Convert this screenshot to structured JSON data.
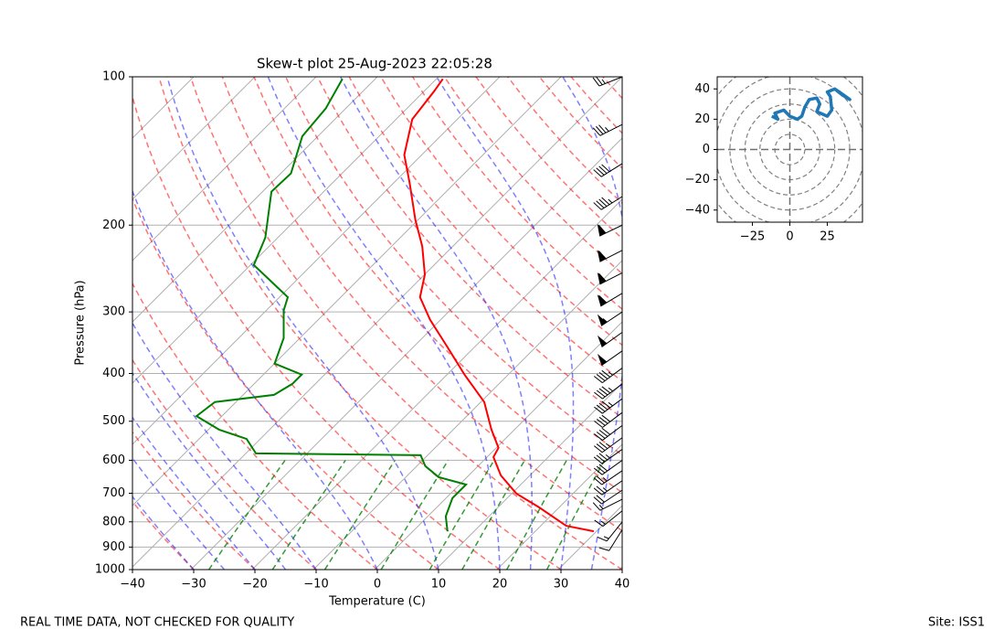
{
  "chart_data": [
    {
      "type": "skewt",
      "title": "Skew-t plot 25-Aug-2023 22:05:28",
      "x_label": "Temperature (C)",
      "y_label": "Pressure (hPa)",
      "xlim": [
        -40,
        40
      ],
      "ylim": [
        1000,
        100
      ],
      "log_y": true,
      "grid": true,
      "xticks": [
        {
          "value": -40,
          "label": "−40"
        },
        {
          "value": -30,
          "label": "−30"
        },
        {
          "value": -20,
          "label": "−20"
        },
        {
          "value": -10,
          "label": "−10"
        },
        0,
        10,
        20,
        30,
        40
      ],
      "yticks": [
        1000,
        900,
        800,
        700,
        600,
        500,
        400,
        300,
        200,
        100
      ],
      "series": [
        {
          "color": "#ff0000",
          "pressure": [
            836,
            815,
            748,
            701,
            644,
            591,
            566,
            520,
            457,
            402,
            354,
            311,
            280,
            252,
            221,
            195,
            164,
            144,
            122,
            107,
            101
          ],
          "values": [
            29.1,
            23.7,
            16.3,
            10.3,
            4.8,
            0.6,
            -0.1,
            -4.2,
            -9.9,
            -17.6,
            -24.8,
            -32.2,
            -37.5,
            -40.4,
            -45.4,
            -50.9,
            -57.9,
            -63.3,
            -67.8,
            -68.8,
            -69.4
          ]
        },
        {
          "color": "#008000",
          "pressure": [
            836,
            780,
            716,
            672,
            649,
            616,
            586,
            581,
            543,
            520,
            488,
            457,
            442,
            420,
            402,
            382,
            339,
            298,
            280,
            263,
            241,
            212,
            171,
            157,
            132,
            116,
            101
          ],
          "values": [
            5.2,
            2.5,
            0.6,
            0.6,
            -5.1,
            -9.1,
            -11.6,
            -38.8,
            -42.7,
            -48.7,
            -54.6,
            -53.9,
            -45.4,
            -44.2,
            -44.2,
            -50.4,
            -53.1,
            -57.6,
            -59.1,
            -63.6,
            -69.9,
            -72.5,
            -79.0,
            -78.8,
            -83.0,
            -83.7,
            -85.8
          ]
        }
      ],
      "barbs": {
        "pressure": [
          830,
          800,
          760,
          720,
          690,
          660,
          630,
          600,
          570,
          540,
          510,
          480,
          450,
          420,
          390,
          360,
          330,
          300,
          275,
          250,
          225,
          200,
          175,
          150,
          125,
          100
        ],
        "u": [
          5,
          8,
          10,
          12,
          18,
          20,
          22,
          25,
          28,
          30,
          32,
          33,
          35,
          36,
          38,
          40,
          42,
          45,
          50,
          55,
          55,
          52,
          40,
          35,
          30,
          25
        ],
        "v": [
          8,
          10,
          8,
          6,
          12,
          14,
          15,
          18,
          20,
          22,
          24,
          25,
          26,
          27,
          28,
          28,
          30,
          30,
          30,
          28,
          28,
          25,
          25,
          22,
          15,
          10
        ]
      },
      "notes": {
        "left": "REAL TIME DATA, NOT CHECKED FOR QUALITY",
        "right": "Site: ISS1"
      }
    },
    {
      "type": "hodograph",
      "xlim": [
        -48.5,
        48.5
      ],
      "ylim": [
        -48,
        48
      ],
      "xticks": [
        {
          "value": -25,
          "label": "−25"
        },
        0,
        25
      ],
      "yticks": [
        {
          "value": -40,
          "label": "−40"
        },
        {
          "value": -20,
          "label": "−20"
        },
        0,
        20,
        40
      ],
      "series": [
        {
          "color": "#1f77b4",
          "u": [
            -12,
            -8,
            -10,
            -4,
            0,
            5,
            8,
            10,
            13,
            18,
            20,
            18,
            25,
            28,
            27,
            25,
            30,
            35,
            40,
            33,
            30
          ],
          "values": [
            22,
            20,
            24,
            26,
            22,
            20,
            22,
            28,
            33,
            34,
            30,
            25,
            22,
            26,
            35,
            38,
            40,
            36,
            33,
            38,
            40
          ]
        }
      ]
    }
  ]
}
